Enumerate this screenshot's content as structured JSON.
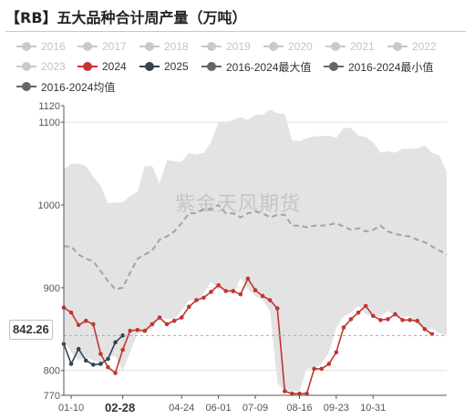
{
  "title": "【RB】五大品种合计周产量（万吨）",
  "watermark": "紫金天风期货",
  "tooltip": {
    "y_value": "842.26",
    "x_value": "02-28"
  },
  "legend": [
    {
      "label": "2016",
      "color": "#c9c9c9",
      "active": false,
      "kind": "dot"
    },
    {
      "label": "2017",
      "color": "#c9c9c9",
      "active": false,
      "kind": "dot"
    },
    {
      "label": "2018",
      "color": "#c9c9c9",
      "active": false,
      "kind": "dot"
    },
    {
      "label": "2019",
      "color": "#c9c9c9",
      "active": false,
      "kind": "dot"
    },
    {
      "label": "2020",
      "color": "#c9c9c9",
      "active": false,
      "kind": "dot"
    },
    {
      "label": "2021",
      "color": "#c9c9c9",
      "active": false,
      "kind": "dot"
    },
    {
      "label": "2022",
      "color": "#c9c9c9",
      "active": false,
      "kind": "dot"
    },
    {
      "label": "2023",
      "color": "#c9c9c9",
      "active": false,
      "kind": "dot"
    },
    {
      "label": "2024",
      "color": "#c23531",
      "active": true,
      "kind": "dot"
    },
    {
      "label": "2025",
      "color": "#2f4554",
      "active": true,
      "kind": "dot"
    },
    {
      "label": "2016-2024最大值",
      "color": "#666666",
      "active": true,
      "kind": "dot"
    },
    {
      "label": "2016-2024最小值",
      "color": "#666666",
      "active": true,
      "kind": "dot"
    },
    {
      "label": "2016-2024均值",
      "color": "#666666",
      "active": true,
      "kind": "dot"
    }
  ],
  "chart_data": {
    "type": "line",
    "x_tick_labels": [
      "01-10",
      "02-28",
      "04-24",
      "06-01",
      "07-09",
      "08-16",
      "09-23",
      "10-31"
    ],
    "y_tick_labels": [
      "770",
      "800",
      "900",
      "1000",
      "1100",
      "1120"
    ],
    "ylim": [
      770,
      1120
    ],
    "num_weeks": 53,
    "grid": "horizontal",
    "colors": {
      "band": "#e3e3e3",
      "avg": "#a3a3a3",
      "y2024": "#c23531",
      "y2025": "#2f4554"
    },
    "series": [
      {
        "name": "2016-2024最大值",
        "values": [
          1043,
          1050,
          1050,
          1047,
          1034,
          1023,
          1002,
          1003,
          1003,
          1011,
          1016,
          1047,
          1047,
          1026,
          1054,
          1053,
          1052,
          1063,
          1061,
          1063,
          1076,
          1100,
          1099,
          1103,
          1106,
          1103,
          1109,
          1109,
          1115,
          1111,
          1110,
          1078,
          1077,
          1081,
          1083,
          1083,
          1084,
          1081,
          1093,
          1093,
          1084,
          1082,
          1076,
          1063,
          1065,
          1063,
          1068,
          1068,
          1068,
          1072,
          1063,
          1060,
          1040
        ]
      },
      {
        "name": "2016-2024最小值",
        "values": [
          838,
          822,
          812,
          816,
          812,
          810,
          817,
          817,
          800,
          822,
          845,
          845,
          850,
          865,
          862,
          862,
          872,
          885,
          885,
          894,
          907,
          898,
          898,
          892,
          912,
          898,
          890,
          885,
          872,
          785,
          775,
          775,
          775,
          802,
          802,
          808,
          822,
          852,
          865,
          870,
          878,
          868,
          865,
          865,
          872,
          865,
          865,
          865,
          855,
          850,
          850,
          845,
          842
        ]
      },
      {
        "name": "2016-2024均值",
        "values": [
          950,
          950,
          940,
          935,
          932,
          920,
          908,
          898,
          900,
          918,
          935,
          940,
          945,
          958,
          962,
          968,
          978,
          990,
          990,
          995,
          995,
          1000,
          990,
          990,
          985,
          990,
          992,
          990,
          985,
          988,
          988,
          975,
          975,
          973,
          975,
          975,
          976,
          978,
          974,
          970,
          972,
          968,
          970,
          975,
          968,
          965,
          963,
          962,
          958,
          955,
          950,
          945,
          940
        ]
      },
      {
        "name": "2024",
        "values": [
          876,
          870,
          855,
          860,
          856,
          820,
          804,
          797,
          825,
          848,
          849,
          848,
          856,
          864,
          856,
          860,
          864,
          877,
          885,
          888,
          895,
          903,
          896,
          896,
          892,
          911,
          897,
          890,
          885,
          875,
          775,
          772,
          772,
          772,
          802,
          802,
          808,
          822,
          852,
          862,
          870,
          878,
          866,
          861,
          862,
          868,
          861,
          861,
          860,
          850,
          844
        ]
      },
      {
        "name": "2025",
        "values": [
          832,
          808,
          826,
          812,
          807,
          808,
          814,
          834,
          842.26
        ]
      }
    ]
  }
}
